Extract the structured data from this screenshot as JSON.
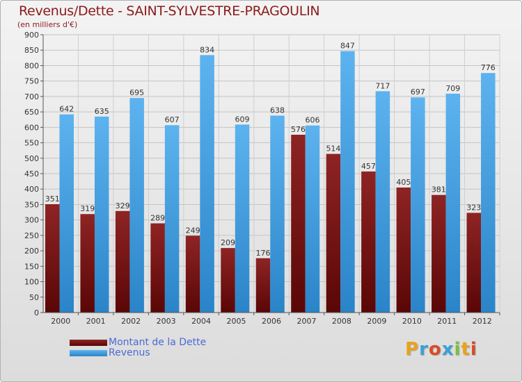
{
  "title": "Revenus/Dette - SAINT-SYLVESTRE-PRAGOULIN",
  "subtitle": "(en milliers d'€)",
  "logo": {
    "text": "Proxiti",
    "colors": [
      "#e8a31c",
      "#3aa0d8",
      "#d94a2a",
      "#3aa0d8",
      "#7bbf3a",
      "#e8a31c",
      "#d94a2a"
    ]
  },
  "chart_data": {
    "type": "bar",
    "title": "Revenus/Dette - SAINT-SYLVESTRE-PRAGOULIN",
    "ylabel": "(en milliers d'€)",
    "xlabel": "",
    "ylim": [
      0,
      900
    ],
    "yticks": [
      0,
      50,
      100,
      150,
      200,
      250,
      300,
      350,
      400,
      450,
      500,
      550,
      600,
      650,
      700,
      750,
      800,
      850,
      900
    ],
    "grid": true,
    "legend_position": "bottom-left",
    "categories": [
      "2000",
      "2001",
      "2002",
      "2003",
      "2004",
      "2005",
      "2006",
      "2007",
      "2008",
      "2009",
      "2010",
      "2011",
      "2012"
    ],
    "series": [
      {
        "name": "Montant de la Dette",
        "color": "#7a1414",
        "values": [
          351,
          319,
          329,
          289,
          249,
          209,
          176,
          576,
          514,
          457,
          405,
          381,
          323
        ]
      },
      {
        "name": "Revenus",
        "color": "#3f9ee0",
        "values": [
          642,
          635,
          695,
          607,
          834,
          609,
          638,
          606,
          847,
          717,
          697,
          709,
          776
        ]
      }
    ]
  }
}
